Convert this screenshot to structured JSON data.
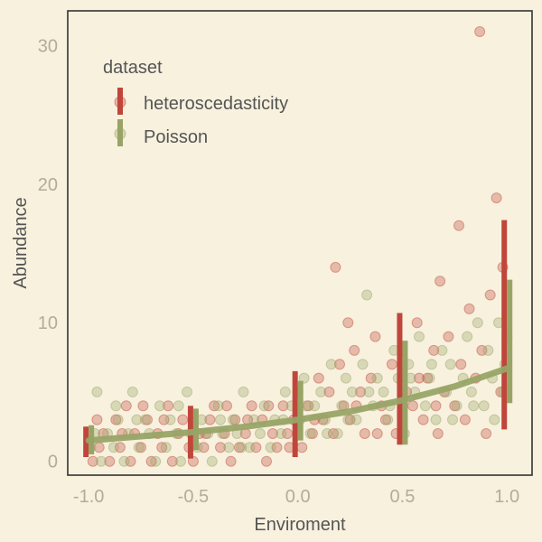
{
  "chart_data": {
    "type": "scatter",
    "xlabel": "Enviroment",
    "ylabel": "Abundance",
    "xlim": [
      -1.1,
      1.12
    ],
    "ylim": [
      -1,
      32.5
    ],
    "xticks": [
      "-1.0",
      "-0.5",
      "0.0",
      "0.5",
      "1.0"
    ],
    "yticks": [
      "0",
      "10",
      "20",
      "30"
    ],
    "grid": false,
    "legend": {
      "title": "dataset",
      "placement": "top-left",
      "entries": [
        "heteroscedasticity",
        "Poisson"
      ]
    },
    "series": [
      {
        "name": "heteroscedasticity",
        "color": "#c0463b",
        "points": [
          [
            -0.98,
            0
          ],
          [
            -0.95,
            1
          ],
          [
            -0.93,
            2
          ],
          [
            -0.9,
            0
          ],
          [
            -0.87,
            3
          ],
          [
            -0.85,
            1
          ],
          [
            -0.82,
            4
          ],
          [
            -0.8,
            0
          ],
          [
            -0.78,
            2
          ],
          [
            -0.75,
            1
          ],
          [
            -0.72,
            3
          ],
          [
            -0.7,
            0
          ],
          [
            -0.67,
            2
          ],
          [
            -0.65,
            1
          ],
          [
            -0.62,
            4
          ],
          [
            -0.6,
            0
          ],
          [
            -0.57,
            2
          ],
          [
            -0.55,
            3
          ],
          [
            -0.52,
            1
          ],
          [
            -0.5,
            0
          ],
          [
            -0.47,
            2
          ],
          [
            -0.45,
            1
          ],
          [
            -0.42,
            3
          ],
          [
            -0.4,
            4
          ],
          [
            -0.37,
            1
          ],
          [
            -0.35,
            2
          ],
          [
            -0.32,
            0
          ],
          [
            -0.3,
            3
          ],
          [
            -0.28,
            1
          ],
          [
            -0.25,
            2
          ],
          [
            -0.22,
            4
          ],
          [
            -0.2,
            1
          ],
          [
            -0.17,
            3
          ],
          [
            -0.15,
            0
          ],
          [
            -0.12,
            2
          ],
          [
            -0.1,
            1
          ],
          [
            -0.07,
            4
          ],
          [
            -0.05,
            2
          ],
          [
            -0.02,
            3
          ],
          [
            0.0,
            5
          ],
          [
            0.02,
            1
          ],
          [
            0.05,
            4
          ],
          [
            0.07,
            2
          ],
          [
            0.1,
            6
          ],
          [
            0.12,
            3
          ],
          [
            0.15,
            5
          ],
          [
            0.17,
            2
          ],
          [
            0.18,
            14
          ],
          [
            0.2,
            7
          ],
          [
            0.22,
            4
          ],
          [
            0.24,
            10
          ],
          [
            0.25,
            3
          ],
          [
            0.27,
            8
          ],
          [
            0.3,
            5
          ],
          [
            0.32,
            2
          ],
          [
            0.35,
            6
          ],
          [
            0.37,
            9
          ],
          [
            0.4,
            4
          ],
          [
            0.42,
            3
          ],
          [
            0.45,
            7
          ],
          [
            0.47,
            2
          ],
          [
            0.5,
            8
          ],
          [
            0.52,
            5
          ],
          [
            0.55,
            4
          ],
          [
            0.57,
            10
          ],
          [
            0.6,
            3
          ],
          [
            0.62,
            6
          ],
          [
            0.65,
            8
          ],
          [
            0.67,
            2
          ],
          [
            0.68,
            13
          ],
          [
            0.7,
            5
          ],
          [
            0.72,
            9
          ],
          [
            0.75,
            4
          ],
          [
            0.77,
            17
          ],
          [
            0.78,
            7
          ],
          [
            0.8,
            3
          ],
          [
            0.82,
            11
          ],
          [
            0.85,
            6
          ],
          [
            0.87,
            31
          ],
          [
            0.88,
            8
          ],
          [
            0.9,
            2
          ],
          [
            0.92,
            12
          ],
          [
            0.95,
            19
          ],
          [
            0.97,
            5
          ],
          [
            0.98,
            14
          ],
          [
            1.0,
            9
          ],
          [
            -0.96,
            3
          ],
          [
            -0.84,
            2
          ],
          [
            -0.74,
            4
          ],
          [
            -0.64,
            3
          ],
          [
            -0.44,
            2
          ],
          [
            -0.34,
            4
          ],
          [
            -0.24,
            3
          ],
          [
            -0.14,
            4
          ],
          [
            -0.04,
            1
          ],
          [
            0.08,
            3
          ],
          [
            0.28,
            4
          ],
          [
            0.38,
            2
          ],
          [
            0.58,
            6
          ],
          [
            0.66,
            4
          ]
        ]
      },
      {
        "name": "Poisson",
        "color": "#98a466",
        "points": [
          [
            -0.99,
            1
          ],
          [
            -0.96,
            5
          ],
          [
            -0.94,
            0
          ],
          [
            -0.91,
            2
          ],
          [
            -0.88,
            1
          ],
          [
            -0.86,
            3
          ],
          [
            -0.83,
            0
          ],
          [
            -0.81,
            2
          ],
          [
            -0.79,
            5
          ],
          [
            -0.76,
            1
          ],
          [
            -0.73,
            3
          ],
          [
            -0.71,
            2
          ],
          [
            -0.68,
            0
          ],
          [
            -0.66,
            4
          ],
          [
            -0.63,
            1
          ],
          [
            -0.61,
            3
          ],
          [
            -0.58,
            2
          ],
          [
            -0.56,
            0
          ],
          [
            -0.53,
            5
          ],
          [
            -0.51,
            2
          ],
          [
            -0.48,
            1
          ],
          [
            -0.46,
            3
          ],
          [
            -0.43,
            2
          ],
          [
            -0.41,
            0
          ],
          [
            -0.38,
            4
          ],
          [
            -0.36,
            2
          ],
          [
            -0.33,
            1
          ],
          [
            -0.31,
            3
          ],
          [
            -0.29,
            2
          ],
          [
            -0.26,
            5
          ],
          [
            -0.23,
            1
          ],
          [
            -0.21,
            3
          ],
          [
            -0.18,
            2
          ],
          [
            -0.16,
            4
          ],
          [
            -0.13,
            1
          ],
          [
            -0.11,
            3
          ],
          [
            -0.08,
            2
          ],
          [
            -0.06,
            5
          ],
          [
            -0.03,
            4
          ],
          [
            0.01,
            3
          ],
          [
            0.03,
            6
          ],
          [
            0.06,
            2
          ],
          [
            0.08,
            4
          ],
          [
            0.11,
            5
          ],
          [
            0.13,
            3
          ],
          [
            0.16,
            7
          ],
          [
            0.19,
            2
          ],
          [
            0.21,
            4
          ],
          [
            0.23,
            6
          ],
          [
            0.26,
            5
          ],
          [
            0.28,
            3
          ],
          [
            0.31,
            7
          ],
          [
            0.33,
            12
          ],
          [
            0.36,
            4
          ],
          [
            0.38,
            6
          ],
          [
            0.41,
            5
          ],
          [
            0.43,
            3
          ],
          [
            0.46,
            8
          ],
          [
            0.48,
            6
          ],
          [
            0.51,
            2
          ],
          [
            0.53,
            7
          ],
          [
            0.56,
            5
          ],
          [
            0.58,
            9
          ],
          [
            0.61,
            4
          ],
          [
            0.63,
            6
          ],
          [
            0.66,
            3
          ],
          [
            0.69,
            8
          ],
          [
            0.71,
            5
          ],
          [
            0.73,
            7
          ],
          [
            0.76,
            4
          ],
          [
            0.79,
            6
          ],
          [
            0.81,
            9
          ],
          [
            0.83,
            5
          ],
          [
            0.86,
            10
          ],
          [
            0.89,
            4
          ],
          [
            0.91,
            8
          ],
          [
            0.93,
            6
          ],
          [
            0.96,
            10
          ],
          [
            0.98,
            5
          ],
          [
            0.99,
            7
          ],
          [
            -0.97,
            2
          ],
          [
            -0.87,
            4
          ],
          [
            -0.77,
            3
          ],
          [
            -0.57,
            4
          ],
          [
            -0.37,
            3
          ],
          [
            -0.27,
            1
          ],
          [
            -0.07,
            3
          ],
          [
            0.04,
            4
          ],
          [
            0.14,
            2
          ],
          [
            0.24,
            3
          ],
          [
            0.34,
            5
          ],
          [
            0.44,
            4
          ],
          [
            0.54,
            6
          ],
          [
            0.64,
            7
          ],
          [
            0.74,
            3
          ],
          [
            0.84,
            4
          ],
          [
            0.94,
            3
          ]
        ]
      }
    ],
    "summary": {
      "x": [
        -1.0,
        -0.5,
        0.0,
        0.5,
        1.0
      ],
      "heteroscedasticity": {
        "low": [
          0.3,
          0.2,
          0.3,
          1.2,
          2.3
        ],
        "high": [
          2.5,
          4.0,
          6.5,
          10.7,
          17.4
        ]
      },
      "Poisson": {
        "low": [
          0.5,
          0.8,
          1.5,
          1.2,
          4.2
        ],
        "high": [
          2.6,
          3.8,
          5.8,
          8.7,
          13.1
        ]
      }
    },
    "fit_line": {
      "series": "Poisson",
      "x": [
        -1.0,
        -0.75,
        -0.5,
        -0.25,
        0.0,
        0.25,
        0.5,
        0.75,
        1.0
      ],
      "y": [
        1.5,
        1.8,
        2.1,
        2.5,
        3.0,
        3.6,
        4.4,
        5.4,
        6.7
      ]
    }
  }
}
